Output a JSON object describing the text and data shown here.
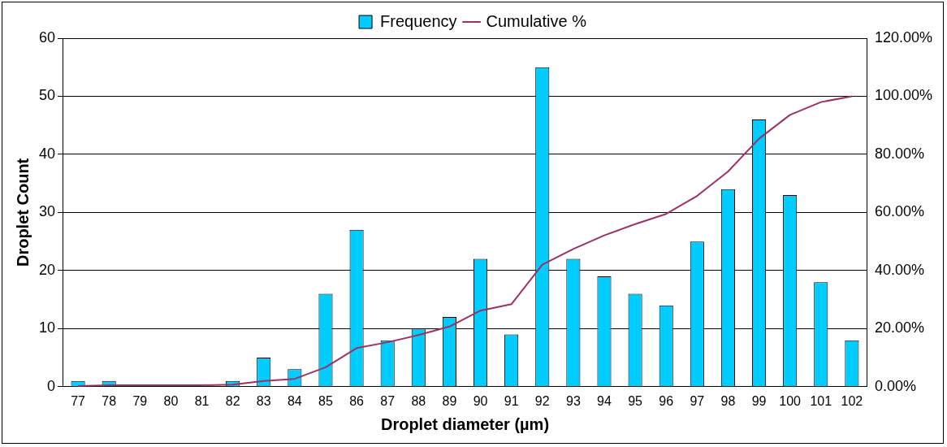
{
  "chart_data": {
    "type": "bar",
    "xlabel": "Droplet diameter (µm)",
    "ylabel": "Droplet Count",
    "categories": [
      "77",
      "78",
      "79",
      "80",
      "81",
      "82",
      "83",
      "84",
      "85",
      "86",
      "87",
      "88",
      "89",
      "90",
      "91",
      "92",
      "93",
      "94",
      "95",
      "96",
      "97",
      "98",
      "99",
      "100",
      "101",
      "102"
    ],
    "series": [
      {
        "name": "Frequency",
        "color": "#00ccff",
        "values": [
          1,
          1,
          0,
          0,
          0,
          1,
          5,
          3,
          16,
          27,
          8,
          10,
          12,
          22,
          9,
          55,
          22,
          19,
          16,
          14,
          25,
          34,
          46,
          33,
          18,
          8
        ]
      },
      {
        "name": "Cumulative %",
        "type": "line",
        "axis": "y2",
        "color": "#993366",
        "values": [
          0.2,
          0.5,
          0.5,
          0.5,
          0.5,
          0.7,
          2.0,
          2.7,
          6.7,
          13.3,
          15.3,
          17.8,
          20.7,
          26.2,
          28.4,
          42.0,
          47.4,
          52.1,
          56.0,
          59.5,
          65.7,
          74.1,
          85.4,
          93.6,
          98.0,
          100.0
        ]
      }
    ],
    "ylim": [
      0,
      60
    ],
    "yticks": [
      0,
      10,
      20,
      30,
      40,
      50,
      60
    ],
    "y2lim": [
      0,
      120
    ],
    "y2ticks": [
      {
        "value": 0,
        "label": "0.00%"
      },
      {
        "value": 20,
        "label": "20.00%"
      },
      {
        "value": 40,
        "label": "40.00%"
      },
      {
        "value": 60,
        "label": "60.00%"
      },
      {
        "value": 80,
        "label": "80.00%"
      },
      {
        "value": 100,
        "label": "100.00%"
      },
      {
        "value": 120,
        "label": "120.00%"
      }
    ],
    "grid": "y",
    "legend": "top",
    "marker": "none",
    "line_style": "solid"
  }
}
